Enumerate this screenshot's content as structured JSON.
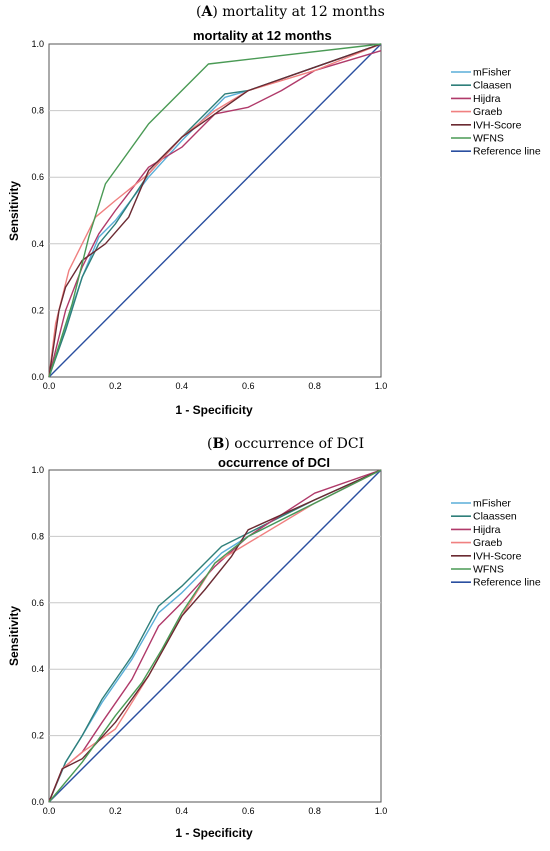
{
  "chart_data": [
    {
      "type": "line",
      "panel_label": "A",
      "caption": "mortality at 12 months",
      "title": "mortality at 12 months",
      "xlabel": "1 - Specificity",
      "ylabel": "Sensitivity",
      "xlim": [
        0,
        1
      ],
      "ylim": [
        0,
        1
      ],
      "ticks": [
        "0.0",
        "0.2",
        "0.4",
        "0.6",
        "0.8",
        "1.0"
      ],
      "grid": "horizontal",
      "legend_position": "right",
      "series": [
        {
          "name": "mFisher",
          "color": "#5aaed8",
          "points": [
            [
              0,
              0
            ],
            [
              0.05,
              0.15
            ],
            [
              0.1,
              0.3
            ],
            [
              0.15,
              0.42
            ],
            [
              0.2,
              0.47
            ],
            [
              0.3,
              0.6
            ],
            [
              0.4,
              0.71
            ],
            [
              0.53,
              0.84
            ],
            [
              0.6,
              0.86
            ],
            [
              0.8,
              0.93
            ],
            [
              1,
              1
            ]
          ]
        },
        {
          "name": "Claasen",
          "color": "#2f7f7a",
          "points": [
            [
              0,
              0
            ],
            [
              0.05,
              0.14
            ],
            [
              0.1,
              0.3
            ],
            [
              0.15,
              0.4
            ],
            [
              0.2,
              0.46
            ],
            [
              0.3,
              0.61
            ],
            [
              0.4,
              0.72
            ],
            [
              0.53,
              0.85
            ],
            [
              0.6,
              0.86
            ],
            [
              0.8,
              0.93
            ],
            [
              1,
              1
            ]
          ]
        },
        {
          "name": "Hijdra",
          "color": "#b03a6a",
          "points": [
            [
              0,
              0
            ],
            [
              0.02,
              0.08
            ],
            [
              0.05,
              0.2
            ],
            [
              0.1,
              0.33
            ],
            [
              0.15,
              0.43
            ],
            [
              0.2,
              0.5
            ],
            [
              0.3,
              0.63
            ],
            [
              0.4,
              0.69
            ],
            [
              0.5,
              0.79
            ],
            [
              0.6,
              0.81
            ],
            [
              0.7,
              0.86
            ],
            [
              0.8,
              0.92
            ],
            [
              1,
              0.98
            ]
          ]
        },
        {
          "name": "Graeb",
          "color": "#f08080",
          "points": [
            [
              0,
              0
            ],
            [
              0.02,
              0.16
            ],
            [
              0.06,
              0.32
            ],
            [
              0.14,
              0.48
            ],
            [
              0.2,
              0.53
            ],
            [
              0.3,
              0.61
            ],
            [
              0.4,
              0.72
            ],
            [
              0.5,
              0.8
            ],
            [
              0.6,
              0.86
            ],
            [
              0.8,
              0.92
            ],
            [
              1,
              1
            ]
          ]
        },
        {
          "name": "IVH-Score",
          "color": "#6b2a32",
          "points": [
            [
              0,
              0
            ],
            [
              0.03,
              0.2
            ],
            [
              0.05,
              0.27
            ],
            [
              0.1,
              0.35
            ],
            [
              0.17,
              0.4
            ],
            [
              0.24,
              0.48
            ],
            [
              0.27,
              0.55
            ],
            [
              0.3,
              0.62
            ],
            [
              0.4,
              0.72
            ],
            [
              0.5,
              0.79
            ],
            [
              0.6,
              0.86
            ],
            [
              0.8,
              0.93
            ],
            [
              1,
              1
            ]
          ]
        },
        {
          "name": "WFNS",
          "color": "#4a9a55",
          "points": [
            [
              0,
              0
            ],
            [
              0.07,
              0.22
            ],
            [
              0.12,
              0.42
            ],
            [
              0.17,
              0.58
            ],
            [
              0.3,
              0.76
            ],
            [
              0.48,
              0.94
            ],
            [
              1,
              1
            ]
          ]
        },
        {
          "name": "Reference line",
          "color": "#2a4fa0",
          "points": [
            [
              0,
              0
            ],
            [
              1,
              1
            ]
          ]
        }
      ]
    },
    {
      "type": "line",
      "panel_label": "B",
      "caption": "occurrence of DCI",
      "title": "occurrence of DCI",
      "xlabel": "1 - Specificity",
      "ylabel": "Sensitivity",
      "xlim": [
        0,
        1
      ],
      "ylim": [
        0,
        1
      ],
      "ticks": [
        "0.0",
        "0.2",
        "0.4",
        "0.6",
        "0.8",
        "1.0"
      ],
      "grid": "horizontal",
      "legend_position": "right",
      "series": [
        {
          "name": "mFisher",
          "color": "#5aaed8",
          "points": [
            [
              0,
              0
            ],
            [
              0.05,
              0.12
            ],
            [
              0.1,
              0.2
            ],
            [
              0.16,
              0.3
            ],
            [
              0.25,
              0.43
            ],
            [
              0.33,
              0.57
            ],
            [
              0.4,
              0.63
            ],
            [
              0.52,
              0.75
            ],
            [
              0.6,
              0.8
            ],
            [
              0.8,
              0.9
            ],
            [
              1,
              1
            ]
          ]
        },
        {
          "name": "Claassen",
          "color": "#2f7f7a",
          "points": [
            [
              0,
              0
            ],
            [
              0.05,
              0.12
            ],
            [
              0.1,
              0.2
            ],
            [
              0.16,
              0.31
            ],
            [
              0.25,
              0.44
            ],
            [
              0.33,
              0.59
            ],
            [
              0.4,
              0.65
            ],
            [
              0.52,
              0.77
            ],
            [
              0.6,
              0.81
            ],
            [
              0.8,
              0.91
            ],
            [
              1,
              1
            ]
          ]
        },
        {
          "name": "Hijdra",
          "color": "#b03a6a",
          "points": [
            [
              0,
              0
            ],
            [
              0.04,
              0.1
            ],
            [
              0.1,
              0.15
            ],
            [
              0.16,
              0.24
            ],
            [
              0.25,
              0.37
            ],
            [
              0.33,
              0.53
            ],
            [
              0.4,
              0.6
            ],
            [
              0.5,
              0.71
            ],
            [
              0.6,
              0.8
            ],
            [
              0.8,
              0.93
            ],
            [
              1,
              1
            ]
          ]
        },
        {
          "name": "Graeb",
          "color": "#f08080",
          "points": [
            [
              0,
              0
            ],
            [
              0.04,
              0.1
            ],
            [
              0.1,
              0.15
            ],
            [
              0.2,
              0.22
            ],
            [
              0.3,
              0.38
            ],
            [
              0.4,
              0.56
            ],
            [
              0.5,
              0.72
            ],
            [
              0.6,
              0.78
            ],
            [
              0.8,
              0.9
            ],
            [
              1,
              1
            ]
          ]
        },
        {
          "name": "IVH-Score",
          "color": "#6b2a32",
          "points": [
            [
              0,
              0
            ],
            [
              0.04,
              0.1
            ],
            [
              0.1,
              0.13
            ],
            [
              0.2,
              0.24
            ],
            [
              0.3,
              0.38
            ],
            [
              0.4,
              0.56
            ],
            [
              0.47,
              0.64
            ],
            [
              0.55,
              0.74
            ],
            [
              0.6,
              0.82
            ],
            [
              0.8,
              0.91
            ],
            [
              1,
              1
            ]
          ]
        },
        {
          "name": "WFNS",
          "color": "#4a9a55",
          "points": [
            [
              0,
              0
            ],
            [
              0.1,
              0.12
            ],
            [
              0.2,
              0.26
            ],
            [
              0.28,
              0.36
            ],
            [
              0.34,
              0.46
            ],
            [
              0.4,
              0.57
            ],
            [
              0.5,
              0.72
            ],
            [
              0.6,
              0.8
            ],
            [
              0.8,
              0.9
            ],
            [
              1,
              1
            ]
          ]
        },
        {
          "name": "Reference line",
          "color": "#2a4fa0",
          "points": [
            [
              0,
              0
            ],
            [
              1,
              1
            ]
          ]
        }
      ]
    }
  ]
}
